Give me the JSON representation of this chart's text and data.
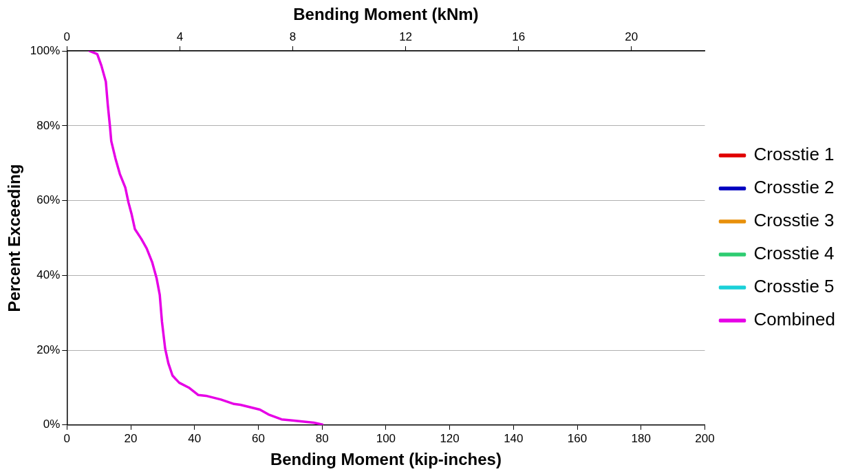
{
  "chart_data": {
    "type": "line",
    "xlabel": "Bending Moment (kip-inches)",
    "ylabel": "Percent Exceeding",
    "x2label": "Bending Moment (kNm)",
    "x": [
      7.1,
      9.5,
      10.8,
      12.2,
      12.8,
      13.5,
      13.9,
      15.2,
      16.6,
      18.3,
      19.3,
      20.3,
      21.3,
      23.3,
      25.0,
      26.7,
      28.1,
      29.1,
      29.8,
      30.8,
      31.8,
      33.1,
      35.2,
      38.2,
      41.2,
      43.6,
      48.3,
      52.4,
      54.4,
      60.5,
      63.2,
      67.3,
      70.7,
      77.4,
      80.1
    ],
    "series": [
      {
        "name": "Crosstie 1",
        "color": "#e00000",
        "values": [
          null,
          null,
          null,
          null,
          null,
          null,
          null,
          null,
          null,
          null,
          null,
          null,
          null,
          null,
          null,
          null,
          null,
          null,
          null,
          null,
          null,
          null,
          null,
          null,
          null,
          null,
          null,
          null,
          null,
          null,
          null,
          null,
          null,
          null,
          null
        ]
      },
      {
        "name": "Crosstie 2",
        "color": "#0000c0",
        "values": [
          null,
          null,
          null,
          null,
          null,
          null,
          null,
          null,
          null,
          null,
          null,
          null,
          null,
          null,
          null,
          null,
          null,
          null,
          null,
          null,
          null,
          null,
          null,
          null,
          null,
          null,
          null,
          null,
          null,
          null,
          null,
          null,
          null,
          null,
          null
        ]
      },
      {
        "name": "Crosstie 3",
        "color": "#e8900a",
        "values": [
          null,
          null,
          null,
          null,
          null,
          null,
          null,
          null,
          null,
          null,
          null,
          null,
          null,
          null,
          null,
          null,
          null,
          null,
          null,
          null,
          null,
          null,
          null,
          null,
          null,
          null,
          null,
          null,
          null,
          null,
          null,
          null,
          null,
          null,
          null
        ]
      },
      {
        "name": "Crosstie 4",
        "color": "#2ecc71",
        "values": [
          null,
          null,
          null,
          null,
          null,
          null,
          null,
          null,
          null,
          null,
          null,
          null,
          null,
          null,
          null,
          null,
          null,
          null,
          null,
          null,
          null,
          null,
          null,
          null,
          null,
          null,
          null,
          null,
          null,
          null,
          null,
          null,
          null,
          null,
          null
        ]
      },
      {
        "name": "Crosstie 5",
        "color": "#1ad0d8",
        "values": [
          null,
          null,
          null,
          null,
          null,
          null,
          null,
          null,
          null,
          null,
          null,
          null,
          null,
          null,
          null,
          null,
          null,
          null,
          null,
          null,
          null,
          null,
          null,
          null,
          null,
          null,
          null,
          null,
          null,
          null,
          null,
          null,
          null,
          null,
          null
        ]
      },
      {
        "name": "Combined",
        "color": "#e600e6",
        "values": [
          100,
          99.2,
          96.1,
          91.8,
          85.7,
          79.8,
          75.9,
          71.3,
          67.1,
          63.5,
          59.5,
          56.3,
          52.4,
          49.8,
          47.2,
          43.6,
          39.3,
          34.8,
          27.6,
          20.4,
          16.5,
          13.2,
          11.3,
          10.0,
          8.0,
          7.8,
          6.8,
          5.6,
          5.4,
          4.1,
          2.8,
          1.5,
          1.2,
          0.6,
          0.1
        ]
      }
    ],
    "xlim": [
      0,
      200
    ],
    "xticks": [
      0,
      20,
      40,
      60,
      80,
      100,
      120,
      140,
      160,
      180,
      200
    ],
    "x2lim": [
      0,
      22.6
    ],
    "x2ticks": [
      0,
      4,
      8,
      12,
      16,
      20
    ],
    "ylim": [
      0,
      100
    ],
    "yticks": [
      {
        "value": 0,
        "label": "0%"
      },
      {
        "value": 20,
        "label": "20%"
      },
      {
        "value": 40,
        "label": "40%"
      },
      {
        "value": 60,
        "label": "60%"
      },
      {
        "value": 80,
        "label": "80%"
      },
      {
        "value": 100,
        "label": "100%"
      }
    ],
    "grid": "y",
    "legend": "right",
    "marker": "none",
    "line_style": "solid"
  }
}
